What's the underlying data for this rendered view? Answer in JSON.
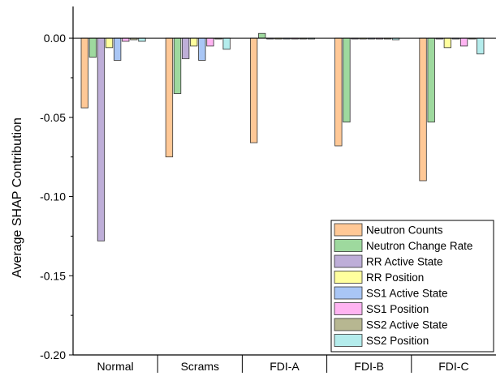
{
  "chart_data": {
    "type": "bar",
    "ylabel": "Average SHAP Contribution",
    "xlabel": "",
    "title": "",
    "ylim": [
      -0.2,
      0.02
    ],
    "yticks": [
      0.0,
      -0.05,
      -0.1,
      -0.15,
      -0.2
    ],
    "ytick_labels": [
      "0.00",
      "-0.05",
      "-0.10",
      "-0.15",
      "-0.20"
    ],
    "categories": [
      "Normal",
      "Scrams",
      "FDI-A",
      "FDI-B",
      "FDI-C"
    ],
    "legend_position": "bottom-right",
    "series": [
      {
        "name": "Neutron Counts",
        "color": "#FFC896",
        "values": [
          -0.044,
          -0.075,
          -0.066,
          -0.068,
          -0.09
        ]
      },
      {
        "name": "Neutron Change Rate",
        "color": "#9ED99E",
        "values": [
          -0.012,
          -0.035,
          0.003,
          -0.053,
          -0.053
        ]
      },
      {
        "name": "RR Active State",
        "color": "#BEAED8",
        "values": [
          -0.128,
          -0.013,
          0.0,
          0.0,
          0.0
        ]
      },
      {
        "name": "RR Position",
        "color": "#FFFF9E",
        "values": [
          -0.006,
          -0.005,
          0.0,
          0.0,
          -0.006
        ]
      },
      {
        "name": "SS1 Active State",
        "color": "#A9C6F5",
        "values": [
          -0.014,
          -0.014,
          0.0,
          0.0,
          0.0
        ]
      },
      {
        "name": "SS1 Position",
        "color": "#FFB4F2",
        "values": [
          -0.002,
          -0.005,
          0.0,
          0.0,
          -0.005
        ]
      },
      {
        "name": "SS2 Active State",
        "color": "#B7B791",
        "values": [
          -0.001,
          0.0,
          0.0,
          0.0,
          0.0
        ]
      },
      {
        "name": "SS2 Position",
        "color": "#B4ECEC",
        "values": [
          -0.002,
          -0.007,
          0.0,
          -0.001,
          -0.01
        ]
      }
    ]
  }
}
